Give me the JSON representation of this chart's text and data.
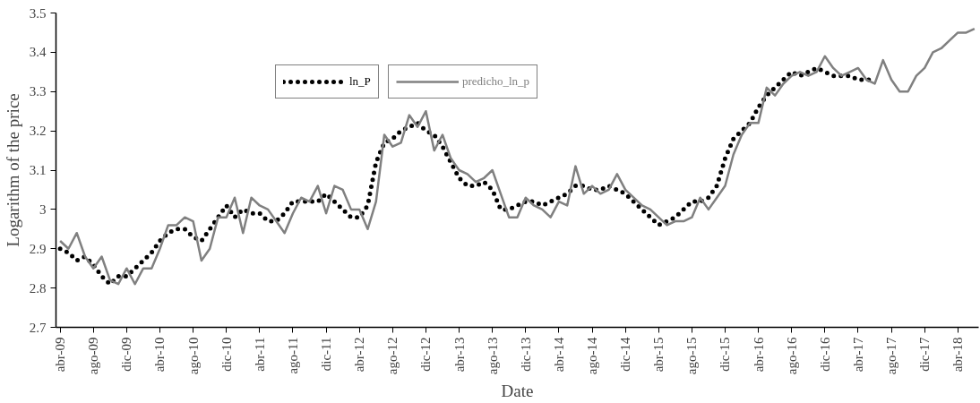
{
  "chart_data": {
    "type": "line",
    "xlabel": "Date",
    "ylabel": "Logarithm of the price",
    "categories": [
      "abr-09",
      null,
      null,
      null,
      "ago-09",
      null,
      null,
      null,
      "dic-09",
      null,
      null,
      null,
      "abr-10",
      null,
      null,
      null,
      "ago-10",
      null,
      null,
      null,
      "dic-10",
      null,
      null,
      null,
      "abr-11",
      null,
      null,
      null,
      "ago-11",
      null,
      null,
      null,
      "dic-11",
      null,
      null,
      null,
      "abr-12",
      null,
      null,
      null,
      "ago-12",
      null,
      null,
      null,
      "dic-12",
      null,
      null,
      null,
      "abr-13",
      null,
      null,
      null,
      "ago-13",
      null,
      null,
      null,
      "dic-13",
      null,
      null,
      null,
      "abr-14",
      null,
      null,
      null,
      "ago-14",
      null,
      null,
      null,
      "dic-14",
      null,
      null,
      null,
      "abr-15",
      null,
      null,
      null,
      "ago-15",
      null,
      null,
      null,
      "dic-15",
      null,
      null,
      null,
      "abr-16",
      null,
      null,
      null,
      "ago-16",
      null,
      null,
      null,
      "dic-16",
      null,
      null,
      null,
      "abr-17",
      null,
      null,
      null,
      "ago-17",
      null,
      null,
      null,
      "dic-17",
      null,
      null,
      null,
      "abr-18",
      null,
      null
    ],
    "series": [
      {
        "name": "ln_P",
        "color": "#000000",
        "line_style": "dotted",
        "values": [
          2.9,
          2.89,
          2.87,
          2.88,
          2.86,
          2.83,
          2.81,
          2.83,
          2.83,
          2.85,
          2.87,
          2.89,
          2.92,
          2.94,
          2.95,
          2.95,
          2.93,
          2.92,
          2.95,
          2.98,
          3.01,
          2.98,
          3.0,
          2.99,
          2.99,
          2.97,
          2.97,
          2.99,
          3.02,
          3.02,
          3.02,
          3.02,
          3.04,
          3.02,
          3.0,
          2.98,
          2.98,
          3.01,
          3.12,
          3.17,
          3.18,
          3.2,
          3.21,
          3.22,
          3.2,
          3.19,
          3.16,
          3.12,
          3.08,
          3.06,
          3.06,
          3.07,
          3.05,
          3.0,
          3.0,
          3.01,
          3.02,
          3.02,
          3.01,
          3.02,
          3.03,
          3.04,
          3.06,
          3.06,
          3.05,
          3.05,
          3.06,
          3.05,
          3.04,
          3.02,
          3.0,
          2.98,
          2.96,
          2.97,
          2.98,
          3.0,
          3.02,
          3.02,
          3.03,
          3.06,
          3.13,
          3.18,
          3.2,
          3.22,
          3.26,
          3.29,
          3.31,
          3.33,
          3.35,
          3.34,
          3.35,
          3.36,
          3.35,
          3.34,
          3.34,
          3.34,
          3.33,
          3.33,
          3.33,
          null,
          null,
          null,
          null,
          null,
          null,
          null,
          null,
          null,
          null,
          null,
          null
        ]
      },
      {
        "name": "predicho_ln_p",
        "color": "#808080",
        "line_style": "solid",
        "values": [
          2.92,
          2.9,
          2.94,
          2.88,
          2.85,
          2.88,
          2.82,
          2.81,
          2.85,
          2.81,
          2.85,
          2.85,
          2.9,
          2.96,
          2.96,
          2.98,
          2.97,
          2.87,
          2.9,
          2.98,
          2.98,
          3.03,
          2.94,
          3.03,
          3.01,
          3.0,
          2.97,
          2.94,
          2.99,
          3.03,
          3.02,
          3.06,
          2.99,
          3.06,
          3.05,
          3.0,
          3.0,
          2.95,
          3.02,
          3.19,
          3.16,
          3.17,
          3.24,
          3.21,
          3.25,
          3.15,
          3.19,
          3.13,
          3.1,
          3.09,
          3.07,
          3.08,
          3.1,
          3.04,
          2.98,
          2.98,
          3.03,
          3.01,
          3.0,
          2.98,
          3.02,
          3.01,
          3.11,
          3.04,
          3.06,
          3.04,
          3.05,
          3.09,
          3.05,
          3.03,
          3.01,
          3.0,
          2.98,
          2.96,
          2.97,
          2.97,
          2.98,
          3.03,
          3.0,
          3.03,
          3.06,
          3.14,
          3.19,
          3.22,
          3.22,
          3.31,
          3.29,
          3.32,
          3.34,
          3.35,
          3.34,
          3.35,
          3.39,
          3.36,
          3.34,
          3.35,
          3.36,
          3.33,
          3.32,
          3.38,
          3.33,
          3.3,
          3.3,
          3.34,
          3.36,
          3.4,
          3.41,
          3.43,
          3.45,
          3.45,
          3.46
        ]
      }
    ],
    "ylim": [
      2.7,
      3.5
    ],
    "yticks": [
      2.7,
      2.8,
      2.9,
      3,
      3.1,
      3.2,
      3.3,
      3.4,
      3.5
    ],
    "legend": "top",
    "grid": false
  }
}
